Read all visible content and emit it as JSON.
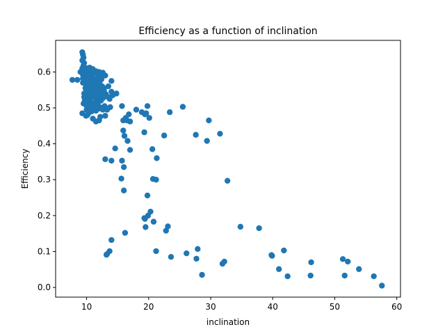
{
  "chart_data": {
    "type": "scatter",
    "title": "Efficiency as a function of inclination",
    "xlabel": "inclination",
    "ylabel": "Efficiency",
    "xlim": [
      5.0,
      60.6
    ],
    "ylim": [
      -0.027,
      0.688
    ],
    "xticks": [
      10,
      20,
      30,
      40,
      50,
      60
    ],
    "yticks": [
      0.0,
      0.1,
      0.2,
      0.3,
      0.4,
      0.5,
      0.6
    ],
    "xtick_labels": [
      "10",
      "20",
      "30",
      "40",
      "50",
      "60"
    ],
    "ytick_labels": [
      "0.0",
      "0.1",
      "0.2",
      "0.3",
      "0.4",
      "0.5",
      "0.6"
    ],
    "grid": false,
    "legend": "none",
    "colors": {
      "marker": "#1f77b4"
    },
    "series": [
      {
        "x": [
          9.3,
          9.4,
          9.5,
          9.3,
          9.6,
          9.5,
          9.4,
          9.7,
          9.8,
          9.5,
          9.6,
          9.4,
          10.0,
          10.2,
          10.5,
          10.8,
          11.0,
          11.2,
          11.5,
          11.8,
          12.0,
          12.3,
          12.6,
          9.8,
          10.1,
          10.4,
          10.7,
          11.0,
          11.3,
          11.6,
          11.9,
          12.2,
          9.9,
          10.3,
          10.6,
          10.9,
          11.4,
          11.7,
          12.1,
          12.5,
          10.0,
          10.4,
          10.8,
          11.1,
          11.5,
          11.9,
          12.4,
          12.8,
          9.6,
          10.2,
          10.6,
          11.0,
          11.3,
          11.8,
          12.2,
          12.7,
          13.1,
          9.7,
          10.1,
          10.5,
          10.9,
          11.4,
          11.8,
          12.3,
          12.9,
          10.0,
          10.4,
          10.8,
          11.2,
          11.7,
          12.1,
          12.6,
          9.5,
          10.0,
          10.5,
          11.0,
          11.5,
          12.0,
          9.4,
          9.9,
          10.3,
          10.8,
          11.3,
          11.9,
          9.3,
          9.6,
          10.1,
          10.7,
          11.2,
          9.2,
          9.5,
          10.0,
          10.6,
          9.4,
          9.8,
          10.2,
          9.6,
          10.0,
          7.7,
          8.5,
          9.0,
          9.2,
          9.6,
          10.3,
          9.9,
          10.8,
          11.5,
          11.0,
          9.3,
          10.1,
          12.0,
          13.0,
          12.5,
          13.3,
          13.8,
          12.2,
          13.5,
          14.0,
          14.8,
          14.2,
          13.0,
          12.8,
          13.5,
          13.7,
          14.0,
          11.2,
          10.5,
          10.0,
          10.9,
          11.6,
          12.4,
          15.7,
          15.9,
          16.3,
          16.8,
          17.0,
          16.5,
          18.0,
          18.9,
          19.6,
          20.1,
          19.4,
          19.8,
          23.4,
          25.5,
          29.7,
          27.6,
          31.5,
          29.4,
          22.5,
          19.3,
          15.9,
          16.1,
          16.6,
          17.0,
          14.6,
          13.0,
          14.0,
          15.7,
          16.0,
          20.6,
          21.3,
          20.7,
          21.2,
          19.8,
          16.0,
          15.6,
          19.9,
          19.3,
          20.3,
          20.8,
          19.5,
          16.2,
          14.0,
          13.7,
          13.3,
          13.2,
          19.4,
          23.1,
          22.8,
          21.2,
          23.6,
          26.1,
          27.9,
          27.7,
          28.6,
          31.9,
          32.2,
          34.8,
          37.8,
          39.9,
          39.8,
          41.0,
          41.8,
          42.4,
          46.1,
          46.2,
          51.3,
          51.6,
          52.1,
          53.9,
          56.3,
          57.6,
          32.7
        ],
        "y": [
          0.655,
          0.648,
          0.64,
          0.632,
          0.625,
          0.618,
          0.612,
          0.605,
          0.6,
          0.595,
          0.588,
          0.582,
          0.61,
          0.605,
          0.612,
          0.6,
          0.608,
          0.598,
          0.602,
          0.595,
          0.6,
          0.59,
          0.598,
          0.585,
          0.58,
          0.59,
          0.578,
          0.585,
          0.575,
          0.582,
          0.57,
          0.588,
          0.565,
          0.57,
          0.56,
          0.568,
          0.558,
          0.565,
          0.572,
          0.56,
          0.552,
          0.545,
          0.555,
          0.548,
          0.54,
          0.552,
          0.545,
          0.555,
          0.54,
          0.535,
          0.528,
          0.538,
          0.53,
          0.525,
          0.535,
          0.528,
          0.538,
          0.52,
          0.515,
          0.522,
          0.512,
          0.518,
          0.51,
          0.52,
          0.505,
          0.505,
          0.5,
          0.508,
          0.498,
          0.51,
          0.502,
          0.495,
          0.512,
          0.495,
          0.49,
          0.5,
          0.492,
          0.498,
          0.592,
          0.575,
          0.565,
          0.55,
          0.545,
          0.54,
          0.61,
          0.6,
          0.59,
          0.585,
          0.57,
          0.6,
          0.592,
          0.578,
          0.562,
          0.57,
          0.555,
          0.548,
          0.53,
          0.525,
          0.578,
          0.578,
          0.6,
          0.6,
          0.612,
          0.485,
          0.478,
          0.49,
          0.462,
          0.47,
          0.485,
          0.48,
          0.465,
          0.478,
          0.5,
          0.495,
          0.502,
          0.475,
          0.56,
          0.575,
          0.54,
          0.535,
          0.59,
          0.548,
          0.53,
          0.525,
          0.545,
          0.6,
          0.595,
          0.585,
          0.58,
          0.57,
          0.58,
          0.505,
          0.465,
          0.472,
          0.482,
          0.462,
          0.465,
          0.495,
          0.488,
          0.485,
          0.472,
          0.482,
          0.505,
          0.488,
          0.503,
          0.465,
          0.425,
          0.428,
          0.408,
          0.423,
          0.432,
          0.437,
          0.422,
          0.408,
          0.383,
          0.387,
          0.357,
          0.353,
          0.353,
          0.335,
          0.385,
          0.36,
          0.302,
          0.3,
          0.256,
          0.27,
          0.303,
          0.2,
          0.193,
          0.211,
          0.183,
          0.168,
          0.152,
          0.132,
          0.101,
          0.093,
          0.091,
          0.191,
          0.17,
          0.158,
          0.101,
          0.085,
          0.095,
          0.107,
          0.08,
          0.035,
          0.066,
          0.072,
          0.169,
          0.165,
          0.088,
          0.09,
          0.051,
          0.103,
          0.031,
          0.033,
          0.07,
          0.079,
          0.033,
          0.072,
          0.051,
          0.031,
          0.005,
          0.297
        ]
      }
    ]
  }
}
